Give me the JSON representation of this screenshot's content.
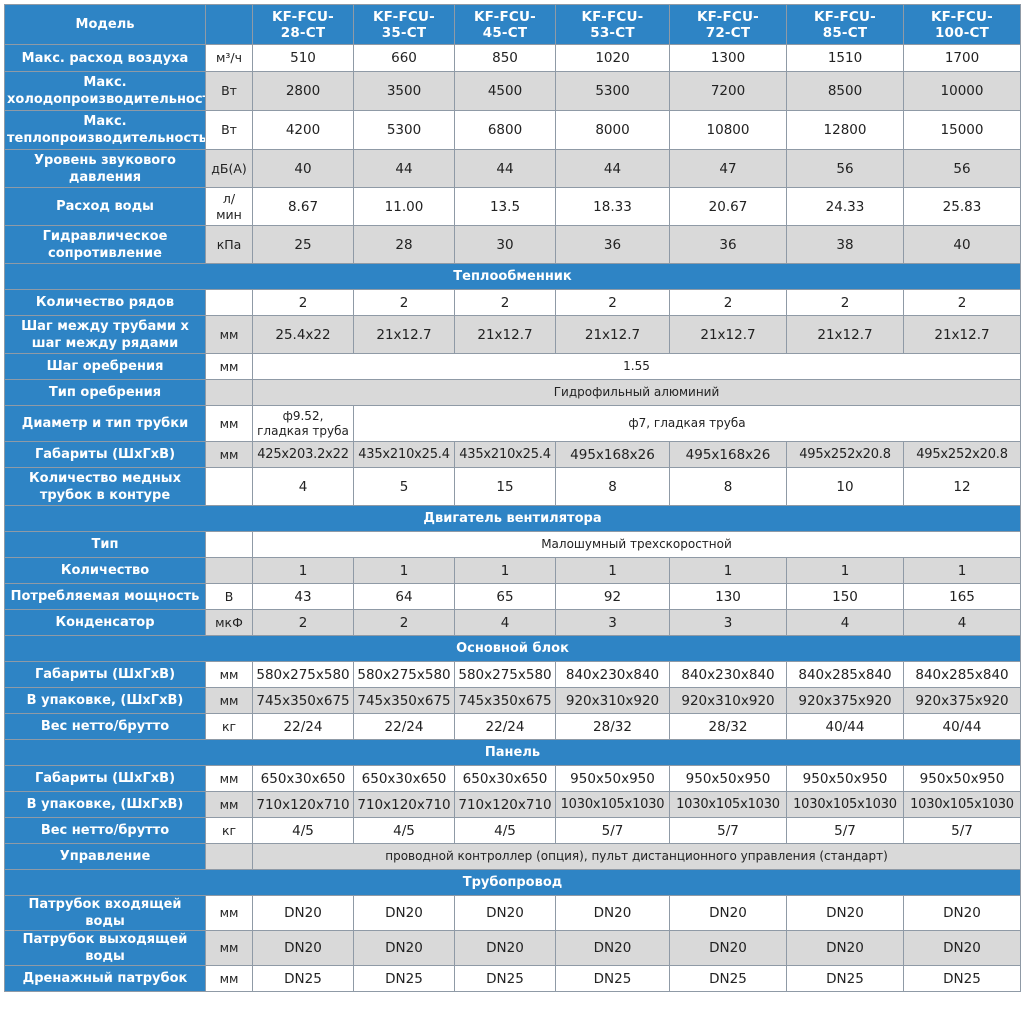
{
  "header": {
    "model_label": "Модель",
    "models": [
      "KF-FCU-\n28-CT",
      "KF-FCU-\n35-CT",
      "KF-FCU-\n45-CT",
      "KF-FCU-\n53-CT",
      "KF-FCU-\n72-CT",
      "KF-FCU-\n85-CT",
      "KF-FCU-\n100-CT"
    ]
  },
  "rows": [
    {
      "label": "Макс. расход воздуха",
      "unit": "м³/ч",
      "values": [
        "510",
        "660",
        "850",
        "1020",
        "1300",
        "1510",
        "1700"
      ]
    },
    {
      "label": "Макс. холодопроизводительность",
      "unit": "Вт",
      "values": [
        "2800",
        "3500",
        "4500",
        "5300",
        "7200",
        "8500",
        "10000"
      ]
    },
    {
      "label": "Макс. теплопроизводительность",
      "unit": "Вт",
      "values": [
        "4200",
        "5300",
        "6800",
        "8000",
        "10800",
        "12800",
        "15000"
      ]
    },
    {
      "label": "Уровень звукового давления",
      "unit": "дБ(А)",
      "values": [
        "40",
        "44",
        "44",
        "44",
        "47",
        "56",
        "56"
      ]
    },
    {
      "label": "Расход воды",
      "unit": "л/\nмин",
      "values": [
        "8.67",
        "11.00",
        "13.5",
        "18.33",
        "20.67",
        "24.33",
        "25.83"
      ]
    },
    {
      "label": "Гидравлическое сопротивление",
      "unit": "кПа",
      "values": [
        "25",
        "28",
        "30",
        "36",
        "36",
        "38",
        "40"
      ]
    },
    {
      "section": "Теплообменник"
    },
    {
      "label": "Количество рядов",
      "unit": "",
      "values": [
        "2",
        "2",
        "2",
        "2",
        "2",
        "2",
        "2"
      ]
    },
    {
      "label": "Шаг между трубами x шаг между рядами",
      "unit": "мм",
      "values": [
        "25.4x22",
        "21x12.7",
        "21x12.7",
        "21x12.7",
        "21x12.7",
        "21x12.7",
        "21x12.7"
      ]
    },
    {
      "label": "Шаг оребрения",
      "unit": "мм",
      "span": "1.55"
    },
    {
      "label": "Тип оребрения",
      "unit": "",
      "span": "Гидрофильный алюминий"
    },
    {
      "label": "Диаметр и тип трубки",
      "unit": "мм",
      "first": "ф9.52,\nгладкая труба",
      "rest": "ф7, гладкая труба"
    },
    {
      "label": "Габариты (ШхГхВ)",
      "unit": "мм",
      "values": [
        "425x203.2x22",
        "435x210x25.4",
        "435x210x25.4",
        "495x168x26",
        "495x168x26",
        "495x252x20.8",
        "495x252x20.8"
      ]
    },
    {
      "label": "Количество медных трубок в контуре",
      "unit": "",
      "values": [
        "4",
        "5",
        "15",
        "8",
        "8",
        "10",
        "12"
      ]
    },
    {
      "section": "Двигатель вентилятора"
    },
    {
      "label": "Тип",
      "unit": "",
      "span": "Малошумный трехскоростной"
    },
    {
      "label": "Количество",
      "unit": "",
      "values": [
        "1",
        "1",
        "1",
        "1",
        "1",
        "1",
        "1"
      ]
    },
    {
      "label": "Потребляемая мощность",
      "unit": "В",
      "values": [
        "43",
        "64",
        "65",
        "92",
        "130",
        "150",
        "165"
      ]
    },
    {
      "label": "Конденсатор",
      "unit": "мкФ",
      "values": [
        "2",
        "2",
        "4",
        "3",
        "3",
        "4",
        "4"
      ]
    },
    {
      "section": "Основной блок"
    },
    {
      "label": "Габариты (ШхГхВ)",
      "unit": "мм",
      "values": [
        "580x275x580",
        "580x275x580",
        "580x275x580",
        "840x230x840",
        "840x230x840",
        "840x285x840",
        "840x285x840"
      ]
    },
    {
      "label": "В упаковке, (ШхГхВ)",
      "unit": "мм",
      "values": [
        "745x350x675",
        "745x350x675",
        "745x350x675",
        "920x310x920",
        "920x310x920",
        "920x375x920",
        "920x375x920"
      ]
    },
    {
      "label": "Вес нетто/брутто",
      "unit": "кг",
      "values": [
        "22/24",
        "22/24",
        "22/24",
        "28/32",
        "28/32",
        "40/44",
        "40/44"
      ]
    },
    {
      "section": "Панель"
    },
    {
      "label": "Габариты (ШхГхВ)",
      "unit": "мм",
      "values": [
        "650x30x650",
        "650x30x650",
        "650x30x650",
        "950x50x950",
        "950x50x950",
        "950x50x950",
        "950x50x950"
      ]
    },
    {
      "label": "В упаковке, (ШхГхВ)",
      "unit": "мм",
      "values": [
        "710x120x710",
        "710x120x710",
        "710x120x710",
        "1030x105x1030",
        "1030x105x1030",
        "1030x105x1030",
        "1030x105x1030"
      ]
    },
    {
      "label": "Вес нетто/брутто",
      "unit": "кг",
      "values": [
        "4/5",
        "4/5",
        "4/5",
        "5/7",
        "5/7",
        "5/7",
        "5/7"
      ]
    },
    {
      "label": "Управление",
      "unit": "",
      "span": "проводной контроллер (опция), пульт дистанционного управления (стандарт)"
    },
    {
      "section": "Трубопровод"
    },
    {
      "label": "Патрубок входящей воды",
      "unit": "мм",
      "values": [
        "DN20",
        "DN20",
        "DN20",
        "DN20",
        "DN20",
        "DN20",
        "DN20"
      ]
    },
    {
      "label": "Патрубок выходящей воды",
      "unit": "мм",
      "values": [
        "DN20",
        "DN20",
        "DN20",
        "DN20",
        "DN20",
        "DN20",
        "DN20"
      ]
    },
    {
      "label": "Дренажный патрубок",
      "unit": "мм",
      "values": [
        "DN25",
        "DN25",
        "DN25",
        "DN25",
        "DN25",
        "DN25",
        "DN25"
      ]
    }
  ]
}
